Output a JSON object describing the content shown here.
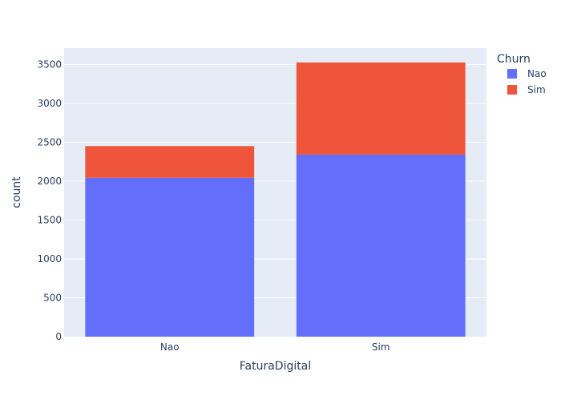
{
  "chart_data": {
    "type": "bar",
    "barmode": "stack",
    "title": "",
    "xlabel": "FaturaDigital",
    "ylabel": "count",
    "categories": [
      "Nao",
      "Sim"
    ],
    "series": [
      {
        "name": "Nao",
        "color": "#636efa",
        "values": [
          2043,
          2340
        ]
      },
      {
        "name": "Sim",
        "color": "#ef553b",
        "values": [
          407,
          1185
        ]
      }
    ],
    "ylim": [
      0,
      3710
    ],
    "yticks": [
      0,
      500,
      1000,
      1500,
      2000,
      2500,
      3000,
      3500
    ],
    "legend": {
      "title": "Churn",
      "position": "top-right"
    },
    "grid": true,
    "plot_bgcolor": "#e5ecf6"
  }
}
